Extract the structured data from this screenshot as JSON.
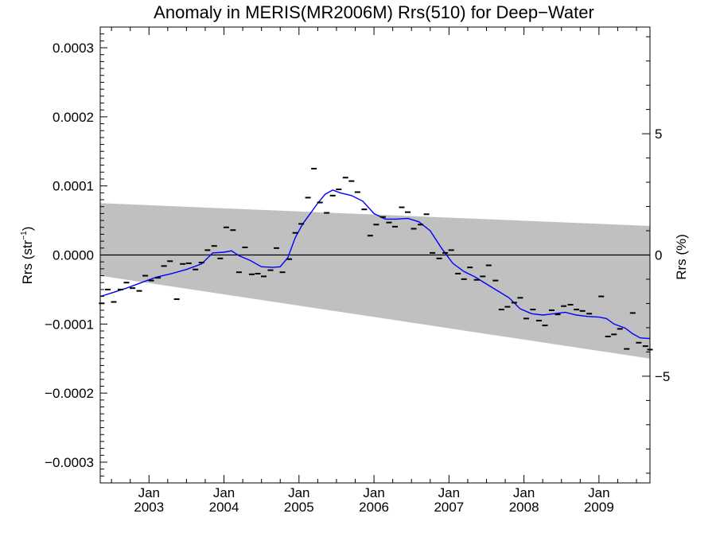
{
  "chart_data": {
    "type": "line",
    "title": "Anomaly in MERIS(MR2006M) Rrs(510) for Deep−Water",
    "ylabel_left_main": "Rrs (str",
    "ylabel_left_sup": "−1",
    "ylabel_left_close": ")",
    "ylabel_right": "Rrs (%)",
    "xlim": [
      2002.35,
      2009.68
    ],
    "ylim": [
      -0.00033,
      0.00033
    ],
    "y2lim": [
      -9.4,
      9.4
    ],
    "x_ticks": [
      {
        "value": 2003.0,
        "top": "Jan",
        "bottom": "2003"
      },
      {
        "value": 2004.0,
        "top": "Jan",
        "bottom": "2004"
      },
      {
        "value": 2005.0,
        "top": "Jan",
        "bottom": "2005"
      },
      {
        "value": 2006.0,
        "top": "Jan",
        "bottom": "2006"
      },
      {
        "value": 2007.0,
        "top": "Jan",
        "bottom": "2007"
      },
      {
        "value": 2008.0,
        "top": "Jan",
        "bottom": "2008"
      },
      {
        "value": 2009.0,
        "top": "Jan",
        "bottom": "2009"
      }
    ],
    "y_ticks": [
      {
        "value": 0.0003,
        "label": "0.0003"
      },
      {
        "value": 0.0002,
        "label": "0.0002"
      },
      {
        "value": 0.0001,
        "label": "0.0001"
      },
      {
        "value": 0.0,
        "label": "0.0000"
      },
      {
        "value": -0.0001,
        "label": "−0.0001"
      },
      {
        "value": -0.0002,
        "label": "−0.0002"
      },
      {
        "value": -0.0003,
        "label": "−0.0003"
      }
    ],
    "y2_ticks": [
      {
        "value": 5,
        "label": "5"
      },
      {
        "value": 0,
        "label": "0"
      },
      {
        "value": -5,
        "label": "−5"
      }
    ],
    "zero_line": 0.0,
    "band": {
      "upper": [
        [
          2002.35,
          7.5e-05
        ],
        [
          2009.68,
          4.2e-05
        ]
      ],
      "lower": [
        [
          2002.35,
          -3e-05
        ],
        [
          2009.68,
          -0.00015
        ]
      ],
      "color": "#c0c0c0"
    },
    "series": [
      {
        "color": "#0000ff",
        "x": [
          2002.35,
          2002.5,
          2002.7,
          2002.9,
          2003.1,
          2003.3,
          2003.5,
          2003.7,
          2003.85,
          2004.0,
          2004.1,
          2004.2,
          2004.35,
          2004.5,
          2004.65,
          2004.75,
          2004.85,
          2004.95,
          2005.05,
          2005.15,
          2005.25,
          2005.35,
          2005.45,
          2005.55,
          2005.7,
          2005.85,
          2006.0,
          2006.15,
          2006.3,
          2006.45,
          2006.6,
          2006.75,
          2006.9,
          2007.05,
          2007.2,
          2007.35,
          2007.5,
          2007.65,
          2007.8,
          2007.95,
          2008.1,
          2008.25,
          2008.4,
          2008.55,
          2008.7,
          2008.85,
          2009.0,
          2009.1,
          2009.2,
          2009.35,
          2009.45,
          2009.55,
          2009.68
        ],
        "y": [
          -6e-05,
          -5.5e-05,
          -4.8e-05,
          -4e-05,
          -3.2e-05,
          -2.7e-05,
          -2.1e-05,
          -1.3e-05,
          3e-06,
          4e-06,
          6e-06,
          -1e-06,
          -8e-06,
          -1.7e-05,
          -1.8e-05,
          -1.7e-05,
          -4e-06,
          2.5e-05,
          4.5e-05,
          6e-05,
          7.5e-05,
          8.8e-05,
          9.4e-05,
          9e-05,
          8.6e-05,
          7.8e-05,
          6e-05,
          5.2e-05,
          5.2e-05,
          5.3e-05,
          4.8e-05,
          3.5e-05,
          1e-05,
          -1.2e-05,
          -2.4e-05,
          -3.2e-05,
          -4.2e-05,
          -5.2e-05,
          -6.2e-05,
          -7.8e-05,
          -8.5e-05,
          -8.7e-05,
          -8.5e-05,
          -8.3e-05,
          -8.7e-05,
          -8.9e-05,
          -9e-05,
          -9.2e-05,
          -0.0001,
          -0.000106,
          -0.000114,
          -0.00012,
          -0.000121
        ]
      }
    ],
    "points": {
      "color": "#000000",
      "x": [
        2002.37,
        2002.45,
        2002.53,
        2002.62,
        2002.7,
        2002.78,
        2002.87,
        2002.95,
        2003.03,
        2003.12,
        2003.2,
        2003.28,
        2003.37,
        2003.45,
        2003.53,
        2003.62,
        2003.7,
        2003.78,
        2003.87,
        2003.95,
        2004.03,
        2004.12,
        2004.2,
        2004.28,
        2004.37,
        2004.45,
        2004.53,
        2004.62,
        2004.7,
        2004.78,
        2004.87,
        2004.95,
        2005.03,
        2005.12,
        2005.2,
        2005.28,
        2005.37,
        2005.45,
        2005.53,
        2005.62,
        2005.7,
        2005.78,
        2005.87,
        2005.95,
        2006.03,
        2006.12,
        2006.2,
        2006.28,
        2006.37,
        2006.45,
        2006.53,
        2006.62,
        2006.7,
        2006.78,
        2006.87,
        2006.95,
        2007.03,
        2007.12,
        2007.2,
        2007.28,
        2007.37,
        2007.45,
        2007.53,
        2007.62,
        2007.7,
        2007.78,
        2007.87,
        2007.95,
        2008.03,
        2008.12,
        2008.2,
        2008.28,
        2008.37,
        2008.45,
        2008.53,
        2008.62,
        2008.7,
        2008.78,
        2008.87,
        2009.03,
        2009.12,
        2009.2,
        2009.28,
        2009.37,
        2009.45,
        2009.53,
        2009.62,
        2009.68
      ],
      "y": [
        -7e-05,
        -5e-05,
        -6.8e-05,
        -5e-05,
        -4e-05,
        -4.8e-05,
        -5.2e-05,
        -3e-05,
        -3.7e-05,
        -3.3e-05,
        -1.6e-05,
        -9e-06,
        -6.4e-05,
        -1.3e-05,
        -1.2e-05,
        -2.1e-05,
        -1.1e-05,
        7e-06,
        1.3e-05,
        -5e-06,
        4e-05,
        3.6e-05,
        -2.5e-05,
        1.1e-05,
        -2.8e-05,
        -2.7e-05,
        -3.1e-05,
        -2.2e-05,
        1e-05,
        -2.5e-05,
        -6e-06,
        3.2e-05,
        4.5e-05,
        8.3e-05,
        0.000125,
        7.6e-05,
        6.1e-05,
        8.6e-05,
        9.5e-05,
        0.000112,
        0.000107,
        9.1e-05,
        6.6e-05,
        2.8e-05,
        4.4e-05,
        5.5e-05,
        4.7e-05,
        4.1e-05,
        6.9e-05,
        6.2e-05,
        3.8e-05,
        4.4e-05,
        5.9e-05,
        3e-06,
        -5e-06,
        3e-06,
        7e-06,
        -2.7e-05,
        -3.5e-05,
        -1.8e-05,
        -3.6e-05,
        -3.1e-05,
        -1.5e-05,
        -3.7e-05,
        -7.9e-05,
        -7.5e-05,
        -6.9e-05,
        -6.2e-05,
        -9.2e-05,
        -7.9e-05,
        -9.5e-05,
        -0.000102,
        -8e-05,
        -8.6e-05,
        -7.4e-05,
        -7.2e-05,
        -7.9e-05,
        -8.1e-05,
        -8.5e-05,
        -6e-05,
        -0.000118,
        -0.000115,
        -0.000107,
        -0.000136,
        -8.4e-05,
        -0.000127,
        -0.000132,
        -0.000137
      ]
    },
    "colors": {
      "band": "#c0c0c0",
      "line": "#0000ff",
      "markers": "#000000",
      "axis": "#000000"
    }
  }
}
